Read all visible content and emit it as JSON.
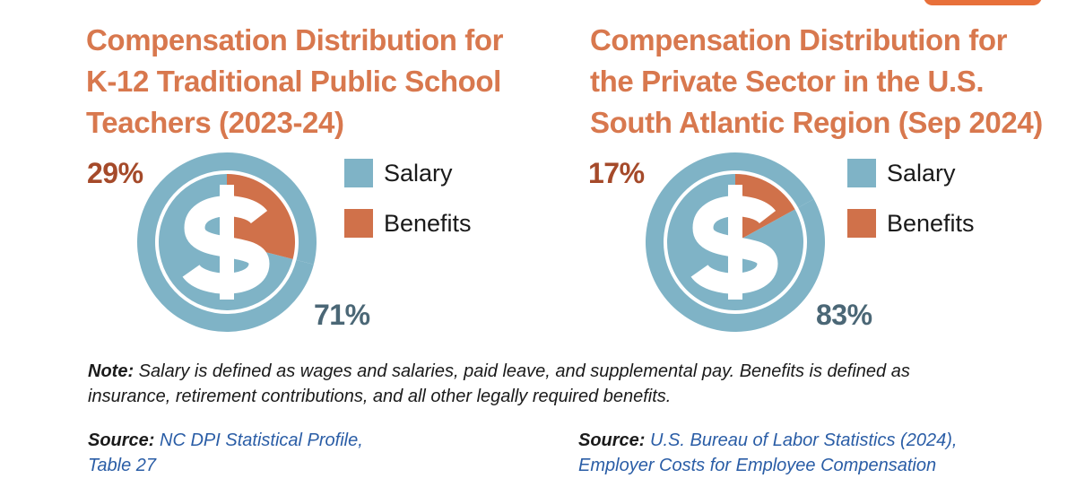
{
  "colors": {
    "salary": "#7fb3c6",
    "benefits": "#d0714a",
    "title": "#d8784e",
    "salary_pct_text": "#4b6776",
    "benefits_pct_text": "#a54a2a",
    "link": "#2a5da6",
    "accent_tab": "#e8703a"
  },
  "chart_data": [
    {
      "type": "pie",
      "title": "Compensation Distribution for\nK-12 Traditional Public School\nTeachers (2023-24)",
      "categories": [
        "Salary",
        "Benefits"
      ],
      "values": [
        71,
        29
      ],
      "labels": [
        "71%",
        "29%"
      ],
      "legend": [
        "Salary",
        "Benefits"
      ],
      "center_icon": "dollar-sign-icon"
    },
    {
      "type": "pie",
      "title": "Compensation Distribution for\nthe Private Sector in the U.S.\nSouth Atlantic Region (Sep 2024)",
      "categories": [
        "Salary",
        "Benefits"
      ],
      "values": [
        83,
        17
      ],
      "labels": [
        "83%",
        "17%"
      ],
      "legend": [
        "Salary",
        "Benefits"
      ],
      "center_icon": "dollar-sign-icon"
    }
  ],
  "note": {
    "label": "Note:",
    "text": " Salary is defined as wages and salaries, paid leave, and supplemental pay. Benefits is defined as insurance, retirement contributions, and all other legally required benefits."
  },
  "sources": [
    {
      "label": "Source:",
      "text": " NC DPI Statistical Profile,\nTable 27"
    },
    {
      "label": "Source:",
      "text": " U.S. Bureau of Labor Statistics (2024),\nEmployer Costs for Employee Compensation"
    }
  ]
}
